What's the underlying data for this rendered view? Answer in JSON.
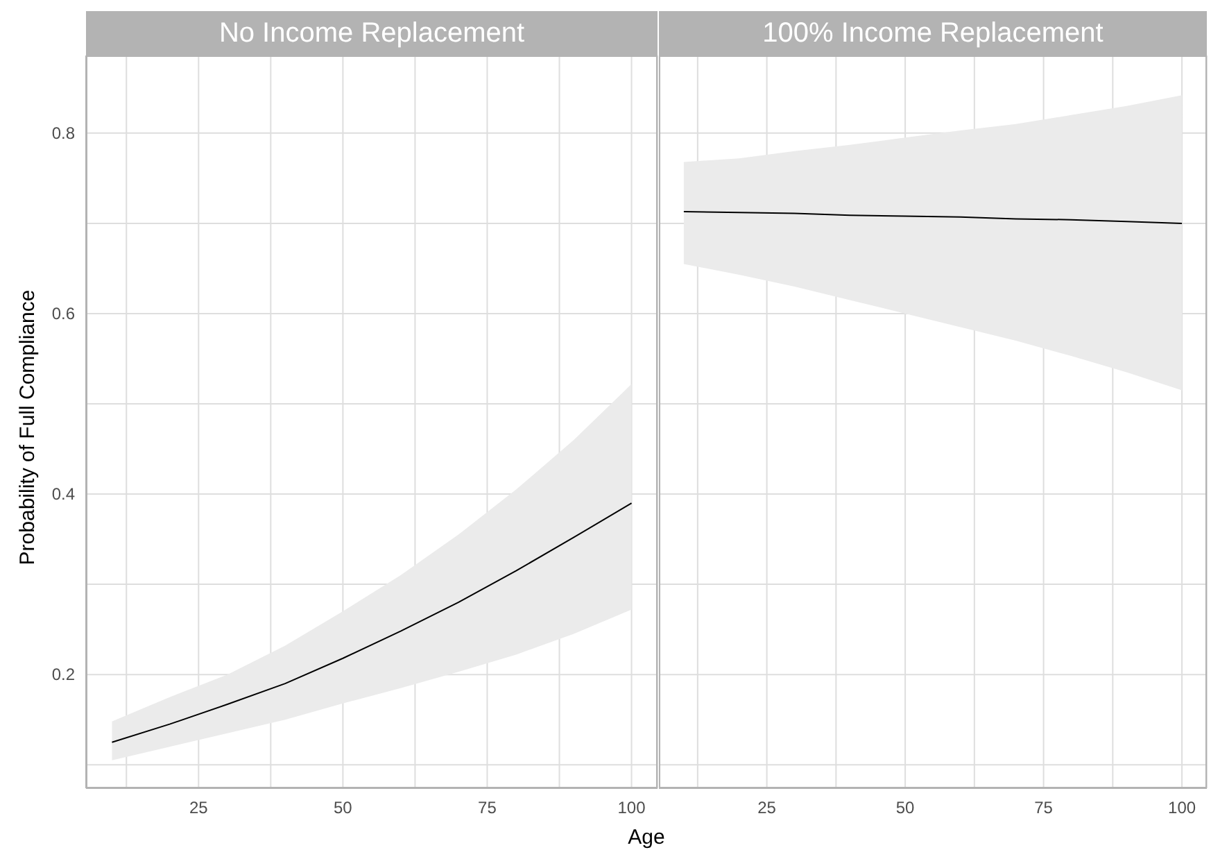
{
  "chart_data": [
    {
      "type": "line",
      "title": "No Income Replacement",
      "xlabel": "Age",
      "ylabel": "Probability of Full Compliance",
      "x": [
        10,
        20,
        30,
        40,
        50,
        60,
        70,
        80,
        90,
        100
      ],
      "series": [
        {
          "color": "#000000",
          "values": [
            0.125,
            0.145,
            0.167,
            0.19,
            0.218,
            0.248,
            0.28,
            0.315,
            0.352,
            0.39
          ],
          "lower": [
            0.105,
            0.12,
            0.135,
            0.15,
            0.168,
            0.185,
            0.203,
            0.222,
            0.245,
            0.272
          ],
          "upper": [
            0.148,
            0.175,
            0.2,
            0.232,
            0.27,
            0.31,
            0.355,
            0.405,
            0.46,
            0.522
          ]
        }
      ],
      "xlim": [
        5.5,
        104.5
      ],
      "xticks": [
        {
          "value": 12.5,
          "label": null
        },
        25,
        {
          "value": 37.5,
          "label": null
        },
        50,
        {
          "value": 62.5,
          "label": null
        },
        75,
        {
          "value": 87.5,
          "label": null
        },
        100
      ],
      "ylim": [
        0.074,
        0.886
      ],
      "yticks": [
        {
          "value": 0.1,
          "label": null
        },
        0.2,
        {
          "value": 0.3,
          "label": null
        },
        0.4,
        {
          "value": 0.5,
          "label": null
        },
        0.6,
        {
          "value": 0.7,
          "label": null
        },
        0.8
      ],
      "grid": true
    },
    {
      "type": "line",
      "title": "100% Income Replacement",
      "x": [
        10,
        20,
        30,
        40,
        50,
        60,
        70,
        80,
        90,
        100
      ],
      "series": [
        {
          "color": "#000000",
          "values": [
            0.713,
            0.712,
            0.711,
            0.709,
            0.708,
            0.707,
            0.705,
            0.704,
            0.702,
            0.7
          ],
          "lower": [
            0.655,
            0.643,
            0.63,
            0.615,
            0.6,
            0.585,
            0.57,
            0.553,
            0.535,
            0.515
          ],
          "upper": [
            0.768,
            0.772,
            0.78,
            0.787,
            0.795,
            0.803,
            0.81,
            0.82,
            0.83,
            0.842
          ]
        }
      ],
      "xlim": [
        5.5,
        104.5
      ],
      "xticks": [
        {
          "value": 12.5,
          "label": null
        },
        25,
        {
          "value": 37.5,
          "label": null
        },
        50,
        {
          "value": 62.5,
          "label": null
        },
        75,
        {
          "value": 87.5,
          "label": null
        },
        100
      ],
      "ylim": [
        0.074,
        0.886
      ],
      "yticks": [
        {
          "value": 0.1,
          "label": null
        },
        0.2,
        {
          "value": 0.3,
          "label": null
        },
        0.4,
        {
          "value": 0.5,
          "label": null
        },
        0.6,
        {
          "value": 0.7,
          "label": null
        },
        0.8
      ],
      "grid": true,
      "tick_labels": "x"
    }
  ]
}
